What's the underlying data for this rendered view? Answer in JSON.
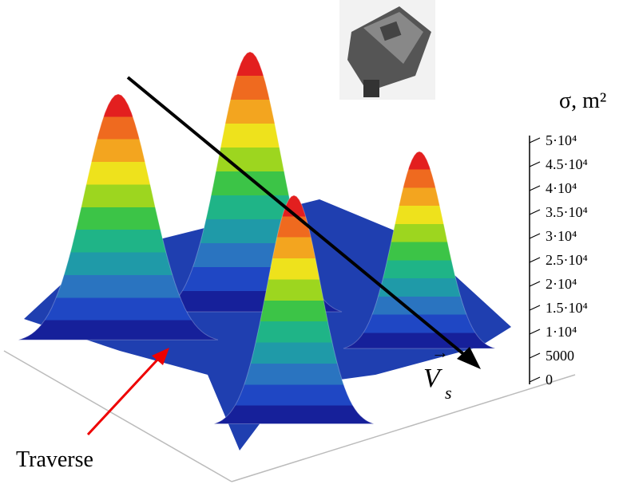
{
  "chart_data": {
    "type": "surface",
    "y_label": "σ, m²",
    "ylim": [
      0,
      50000
    ],
    "yticks": [
      0,
      5000,
      {
        "value": 10000,
        "label": "1·10⁴"
      },
      {
        "value": 15000,
        "label": "1.5·10⁴"
      },
      {
        "value": 20000,
        "label": "2·10⁴"
      },
      {
        "value": 25000,
        "label": "2.5·10⁴"
      },
      {
        "value": 30000,
        "label": "3·10⁴"
      },
      {
        "value": 35000,
        "label": "3.5·10⁴"
      },
      {
        "value": 40000,
        "label": "4·10⁴"
      },
      {
        "value": 45000,
        "label": "4.5·10⁴"
      },
      {
        "value": 50000,
        "label": "5·10⁴"
      }
    ],
    "peaks": [
      50000,
      50000,
      50000,
      50000
    ],
    "colormap": [
      "#16209a",
      "#1f47c4",
      "#2a74c0",
      "#1f9aa8",
      "#1fb487",
      "#3cc447",
      "#9dd61f",
      "#eee21c",
      "#f3a51f",
      "#ef6a1f",
      "#e31f1f"
    ],
    "annotations": {
      "traverse": "Traverse",
      "velocity": "V",
      "velocity_subscript": "s"
    }
  }
}
